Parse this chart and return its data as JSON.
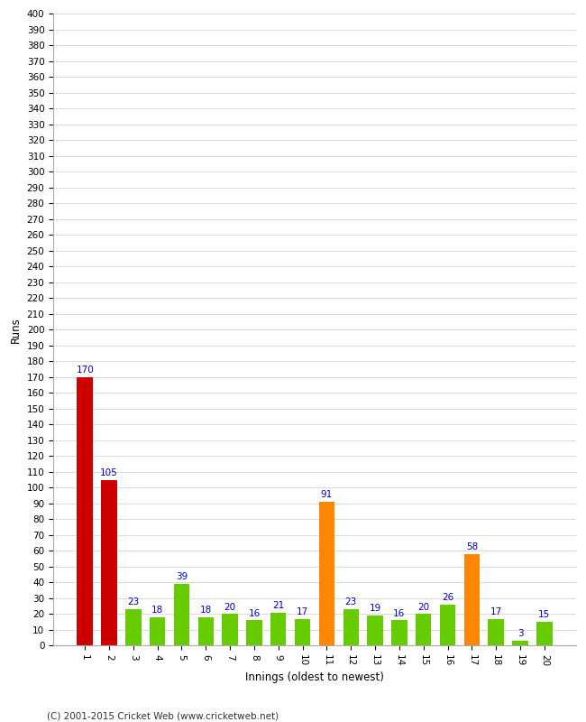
{
  "xlabel": "Innings (oldest to newest)",
  "ylabel": "Runs",
  "categories": [
    1,
    2,
    3,
    4,
    5,
    6,
    7,
    8,
    9,
    10,
    11,
    12,
    13,
    14,
    15,
    16,
    17,
    18,
    19,
    20
  ],
  "values": [
    170,
    105,
    23,
    18,
    39,
    18,
    20,
    16,
    21,
    17,
    91,
    23,
    19,
    16,
    20,
    26,
    58,
    17,
    3,
    15
  ],
  "colors": [
    "#cc0000",
    "#cc0000",
    "#66cc00",
    "#66cc00",
    "#66cc00",
    "#66cc00",
    "#66cc00",
    "#66cc00",
    "#66cc00",
    "#66cc00",
    "#ff8800",
    "#66cc00",
    "#66cc00",
    "#66cc00",
    "#66cc00",
    "#66cc00",
    "#ff8800",
    "#66cc00",
    "#66cc00",
    "#66cc00"
  ],
  "ylim": [
    0,
    400
  ],
  "yticks": [
    0,
    10,
    20,
    30,
    40,
    50,
    60,
    70,
    80,
    90,
    100,
    110,
    120,
    130,
    140,
    150,
    160,
    170,
    180,
    190,
    200,
    210,
    220,
    230,
    240,
    250,
    260,
    270,
    280,
    290,
    300,
    310,
    320,
    330,
    340,
    350,
    360,
    370,
    380,
    390,
    400
  ],
  "label_color": "#0000cc",
  "background_color": "#ffffff",
  "grid_color": "#cccccc",
  "footer": "(C) 2001-2015 Cricket Web (www.cricketweb.net)",
  "bar_width": 0.65,
  "tick_fontsize": 7.5,
  "xlabel_fontsize": 8.5,
  "ylabel_fontsize": 8.5,
  "footer_fontsize": 7.5,
  "label_fontsize": 7.5
}
